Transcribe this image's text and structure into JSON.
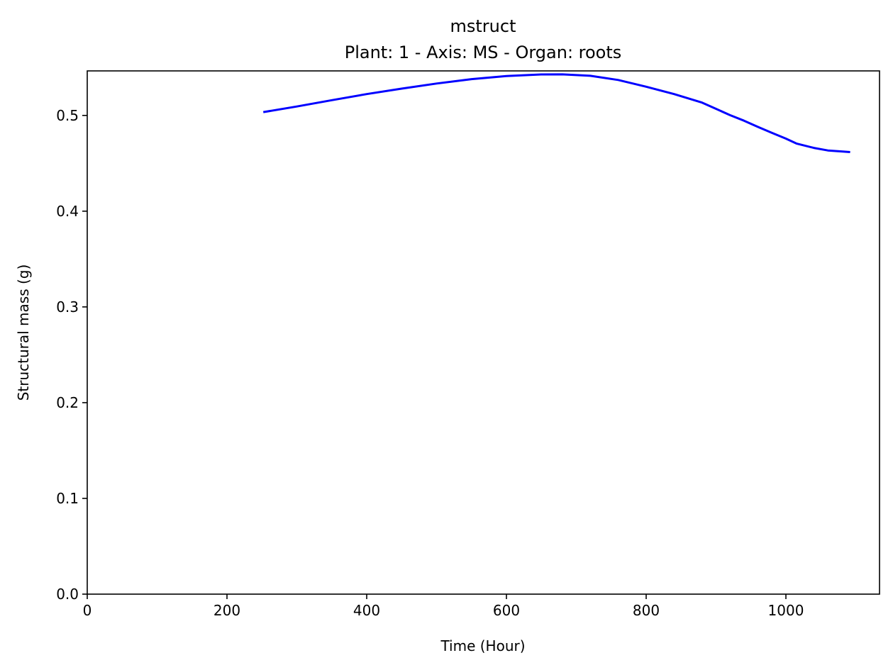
{
  "chart_data": {
    "type": "line",
    "title": "mstruct",
    "subtitle": "Plant: 1 - Axis: MS - Organ: roots",
    "xlabel": "Time (Hour)",
    "ylabel": "Structural mass (g)",
    "xlim": [
      0,
      1134
    ],
    "ylim": [
      0,
      0.5465
    ],
    "xticks": [
      0,
      200,
      400,
      600,
      800,
      1000
    ],
    "yticks": [
      0.0,
      0.1,
      0.2,
      0.3,
      0.4,
      0.5
    ],
    "xtick_labels": [
      "0",
      "200",
      "400",
      "600",
      "800",
      "1000"
    ],
    "ytick_labels": [
      "0.0",
      "0.1",
      "0.2",
      "0.3",
      "0.4",
      "0.5"
    ],
    "grid": false,
    "legend": "none",
    "series": [
      {
        "color": "#0000ff",
        "x": [
          252,
          300,
          350,
          400,
          450,
          500,
          550,
          600,
          650,
          680,
          720,
          760,
          800,
          840,
          880,
          900,
          920,
          940,
          960,
          980,
          1000,
          1015,
          1040,
          1060,
          1080,
          1092
        ],
        "y": [
          0.5035,
          0.5093,
          0.5159,
          0.5223,
          0.528,
          0.5333,
          0.5379,
          0.5412,
          0.5428,
          0.5429,
          0.5414,
          0.537,
          0.53,
          0.5223,
          0.5134,
          0.5069,
          0.5003,
          0.4945,
          0.488,
          0.4818,
          0.4758,
          0.4707,
          0.4661,
          0.4634,
          0.4624,
          0.4617
        ]
      }
    ]
  }
}
